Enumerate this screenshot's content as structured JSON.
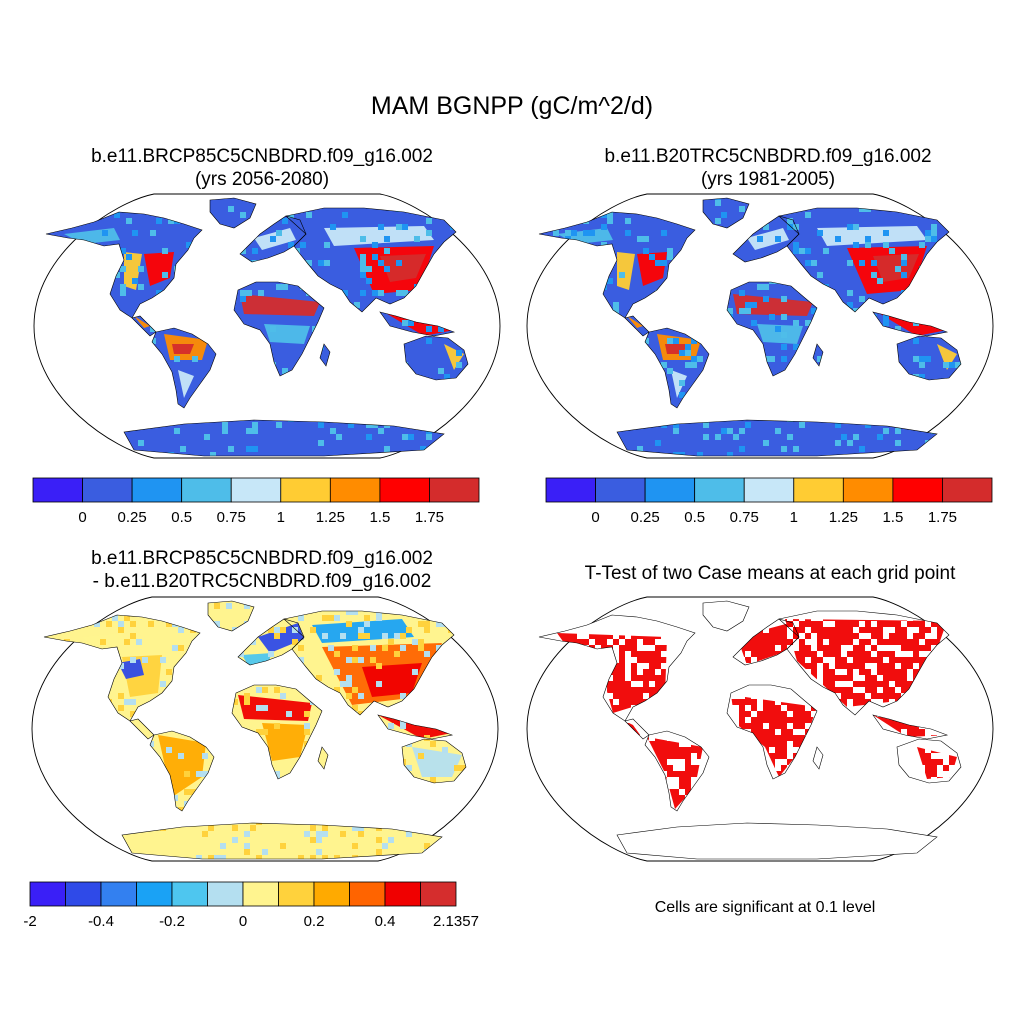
{
  "title": "MAM BGNPP (gC/m^2/d)",
  "colors": {
    "scale1": [
      "#3a1ff7",
      "#3a5de0",
      "#1f94f2",
      "#4ebde9",
      "#c7e7f8",
      "#ffcc33",
      "#ff8c00",
      "#ff0000",
      "#d42c2c"
    ],
    "scale2": [
      "#3a1ff7",
      "#2f4ae8",
      "#3380f0",
      "#1aa2f5",
      "#4ec6ef",
      "#b4dff0",
      "#fff48f",
      "#ffd23c",
      "#ffaa00",
      "#ff6400",
      "#f00000",
      "#d52d2d"
    ],
    "significant": "#f00000",
    "ocean": "#ffffff"
  },
  "chart_data": [
    {
      "type": "heatmap",
      "map_projection": "Robinson",
      "case": "b.e11.BRCP85C5CNBDRD.f09_g16.002",
      "period": "(yrs 2056-2080)",
      "colorbar_labels": [
        "0",
        "0.25",
        "0.5",
        "0.75",
        "1",
        "1.25",
        "1.5",
        "1.75"
      ],
      "n_bins": 9
    },
    {
      "type": "heatmap",
      "map_projection": "Robinson",
      "case": "b.e11.B20TRC5CNBDRD.f09_g16.002",
      "period": "(yrs 1981-2005)",
      "colorbar_labels": [
        "0",
        "0.25",
        "0.5",
        "0.75",
        "1",
        "1.25",
        "1.5",
        "1.75"
      ],
      "n_bins": 9
    },
    {
      "type": "heatmap",
      "map_projection": "Robinson",
      "case_a": "b.e11.BRCP85C5CNBDRD.f09_g16.002",
      "case_b": "- b.e11.B20TRC5CNBDRD.f09_g16.002",
      "colorbar_labels": [
        "-2",
        "-0.4",
        "-0.2",
        "0",
        "0.2",
        "0.4",
        "2.1357"
      ],
      "n_bins": 12
    },
    {
      "type": "heatmap",
      "map_projection": "Robinson",
      "title": "T-Test of two Case means at each grid point",
      "note": "Cells are significant at 0.1 level"
    }
  ]
}
